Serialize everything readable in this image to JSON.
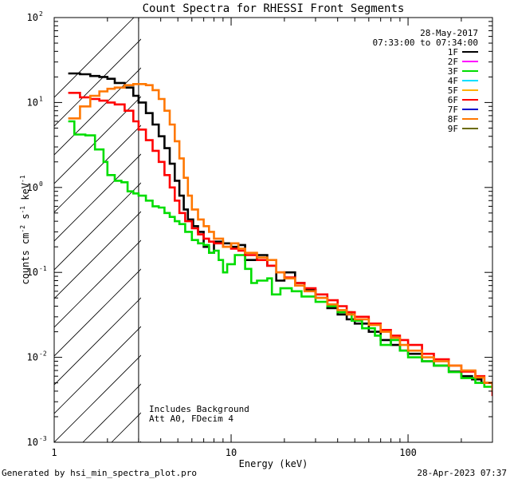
{
  "chart_data": {
    "type": "line",
    "title": "Count Spectra for RHESSI Front Segments",
    "xlabel": "Energy (keV)",
    "ylabel": "counts cm",
    "ylabel_parts": [
      "counts cm",
      "-2",
      " s",
      "-1",
      " keV",
      "-1"
    ],
    "xscale": "log",
    "yscale": "log",
    "xlim": [
      1,
      300
    ],
    "ylim": [
      0.001,
      100
    ],
    "x_ticks": [
      {
        "value": 1,
        "label": "1"
      },
      {
        "value": 10,
        "label": "10"
      },
      {
        "value": 100,
        "label": "100"
      }
    ],
    "y_ticks": [
      {
        "value": 0.001,
        "base": "10",
        "exp": "-3"
      },
      {
        "value": 0.01,
        "base": "10",
        "exp": "-2"
      },
      {
        "value": 0.1,
        "base": "10",
        "exp": "-1"
      },
      {
        "value": 1,
        "base": "10",
        "exp": "0"
      },
      {
        "value": 10,
        "base": "10",
        "exp": "1"
      },
      {
        "value": 100,
        "base": "10",
        "exp": "2"
      }
    ],
    "hatched_region": {
      "x_from": 1,
      "x_to": 3
    },
    "date": "28-May-2017",
    "time_range": "07:33:00 to 07:34:00",
    "annotations": [
      "Includes Background",
      "Att A0, FDecim 4"
    ],
    "legend": [
      {
        "name": "1F",
        "color": "#000000"
      },
      {
        "name": "2F",
        "color": "#ff00ff"
      },
      {
        "name": "3F",
        "color": "#00dd00"
      },
      {
        "name": "4F",
        "color": "#00e0ff"
      },
      {
        "name": "5F",
        "color": "#ffb000"
      },
      {
        "name": "6F",
        "color": "#ff0000"
      },
      {
        "name": "7F",
        "color": "#0000cc"
      },
      {
        "name": "8F",
        "color": "#ff7700"
      },
      {
        "name": "9F",
        "color": "#6b6b00"
      }
    ],
    "series": [
      {
        "name": "1F",
        "color": "#000000",
        "points": [
          [
            1.2,
            22
          ],
          [
            1.4,
            21.5
          ],
          [
            1.6,
            20.5
          ],
          [
            1.8,
            20
          ],
          [
            2.0,
            19
          ],
          [
            2.2,
            17
          ],
          [
            2.5,
            15
          ],
          [
            2.8,
            12
          ],
          [
            3.0,
            10
          ],
          [
            3.3,
            7.5
          ],
          [
            3.6,
            5.5
          ],
          [
            3.9,
            4
          ],
          [
            4.2,
            2.9
          ],
          [
            4.5,
            1.9
          ],
          [
            4.8,
            1.2
          ],
          [
            5.1,
            0.8
          ],
          [
            5.4,
            0.55
          ],
          [
            5.7,
            0.42
          ],
          [
            6.1,
            0.35
          ],
          [
            6.5,
            0.3
          ],
          [
            7.0,
            0.2
          ],
          [
            7.5,
            0.17
          ],
          [
            8.0,
            0.23
          ],
          [
            9.0,
            0.22
          ],
          [
            10,
            0.2
          ],
          [
            11,
            0.21
          ],
          [
            12,
            0.14
          ],
          [
            14,
            0.16
          ],
          [
            16,
            0.12
          ],
          [
            18,
            0.08
          ],
          [
            20,
            0.1
          ],
          [
            23,
            0.075
          ],
          [
            26,
            0.062
          ],
          [
            30,
            0.05
          ],
          [
            35,
            0.038
          ],
          [
            40,
            0.032
          ],
          [
            45,
            0.028
          ],
          [
            50,
            0.025
          ],
          [
            60,
            0.02
          ],
          [
            70,
            0.016
          ],
          [
            80,
            0.014
          ],
          [
            90,
            0.012
          ],
          [
            100,
            0.011
          ],
          [
            120,
            0.009
          ],
          [
            140,
            0.008
          ],
          [
            170,
            0.0068
          ],
          [
            200,
            0.006
          ],
          [
            230,
            0.0055
          ],
          [
            260,
            0.005
          ],
          [
            300,
            0.0045
          ]
        ]
      },
      {
        "name": "3F",
        "color": "#00dd00",
        "points": [
          [
            1.2,
            6
          ],
          [
            1.3,
            4.2
          ],
          [
            1.5,
            4.1
          ],
          [
            1.7,
            2.8
          ],
          [
            1.9,
            2.0
          ],
          [
            2.0,
            1.4
          ],
          [
            2.2,
            1.2
          ],
          [
            2.4,
            1.15
          ],
          [
            2.6,
            0.9
          ],
          [
            2.8,
            0.85
          ],
          [
            3.0,
            0.8
          ],
          [
            3.3,
            0.7
          ],
          [
            3.6,
            0.6
          ],
          [
            3.9,
            0.58
          ],
          [
            4.2,
            0.5
          ],
          [
            4.5,
            0.45
          ],
          [
            4.8,
            0.4
          ],
          [
            5.1,
            0.37
          ],
          [
            5.5,
            0.3
          ],
          [
            6.0,
            0.24
          ],
          [
            6.5,
            0.22
          ],
          [
            7.0,
            0.21
          ],
          [
            7.5,
            0.17
          ],
          [
            8.0,
            0.18
          ],
          [
            8.5,
            0.14
          ],
          [
            9.0,
            0.1
          ],
          [
            9.5,
            0.125
          ],
          [
            10.5,
            0.16
          ],
          [
            12,
            0.11
          ],
          [
            13,
            0.075
          ],
          [
            14,
            0.08
          ],
          [
            16,
            0.085
          ],
          [
            17,
            0.055
          ],
          [
            19,
            0.065
          ],
          [
            22,
            0.06
          ],
          [
            25,
            0.052
          ],
          [
            30,
            0.045
          ],
          [
            35,
            0.04
          ],
          [
            40,
            0.034
          ],
          [
            48,
            0.027
          ],
          [
            55,
            0.022
          ],
          [
            65,
            0.018
          ],
          [
            70,
            0.014
          ],
          [
            80,
            0.016
          ],
          [
            90,
            0.012
          ],
          [
            100,
            0.01
          ],
          [
            120,
            0.009
          ],
          [
            140,
            0.008
          ],
          [
            170,
            0.0067
          ],
          [
            200,
            0.0057
          ],
          [
            240,
            0.005
          ],
          [
            270,
            0.0045
          ],
          [
            300,
            0.004
          ]
        ]
      },
      {
        "name": "6F",
        "color": "#ff0000",
        "points": [
          [
            1.2,
            13
          ],
          [
            1.4,
            11.5
          ],
          [
            1.6,
            11
          ],
          [
            1.8,
            10.5
          ],
          [
            2.0,
            10
          ],
          [
            2.2,
            9.5
          ],
          [
            2.5,
            8
          ],
          [
            2.8,
            6
          ],
          [
            3.0,
            4.8
          ],
          [
            3.3,
            3.6
          ],
          [
            3.6,
            2.7
          ],
          [
            3.9,
            2.0
          ],
          [
            4.2,
            1.4
          ],
          [
            4.5,
            1.0
          ],
          [
            4.8,
            0.7
          ],
          [
            5.1,
            0.5
          ],
          [
            5.5,
            0.4
          ],
          [
            6.0,
            0.33
          ],
          [
            6.5,
            0.28
          ],
          [
            7.0,
            0.25
          ],
          [
            7.5,
            0.23
          ],
          [
            8.0,
            0.22
          ],
          [
            9.0,
            0.2
          ],
          [
            10,
            0.19
          ],
          [
            11,
            0.18
          ],
          [
            12,
            0.16
          ],
          [
            14,
            0.14
          ],
          [
            16,
            0.12
          ],
          [
            18,
            0.1
          ],
          [
            20,
            0.087
          ],
          [
            23,
            0.075
          ],
          [
            26,
            0.065
          ],
          [
            30,
            0.055
          ],
          [
            35,
            0.047
          ],
          [
            40,
            0.04
          ],
          [
            45,
            0.034
          ],
          [
            50,
            0.03
          ],
          [
            60,
            0.025
          ],
          [
            70,
            0.021
          ],
          [
            80,
            0.018
          ],
          [
            90,
            0.016
          ],
          [
            100,
            0.014
          ],
          [
            120,
            0.011
          ],
          [
            140,
            0.0095
          ],
          [
            170,
            0.008
          ],
          [
            200,
            0.0068
          ],
          [
            240,
            0.006
          ],
          [
            270,
            0.005
          ],
          [
            300,
            0.0035
          ]
        ]
      },
      {
        "name": "8F",
        "color": "#ff7700",
        "points": [
          [
            1.2,
            6.5
          ],
          [
            1.4,
            9
          ],
          [
            1.6,
            12
          ],
          [
            1.8,
            13.5
          ],
          [
            2.0,
            14.5
          ],
          [
            2.2,
            15
          ],
          [
            2.5,
            16
          ],
          [
            2.8,
            16.5
          ],
          [
            3.0,
            16.5
          ],
          [
            3.3,
            16
          ],
          [
            3.6,
            14
          ],
          [
            3.9,
            11
          ],
          [
            4.2,
            8
          ],
          [
            4.5,
            5.5
          ],
          [
            4.8,
            3.5
          ],
          [
            5.1,
            2.2
          ],
          [
            5.4,
            1.3
          ],
          [
            5.7,
            0.8
          ],
          [
            6.0,
            0.55
          ],
          [
            6.5,
            0.42
          ],
          [
            7.0,
            0.35
          ],
          [
            7.5,
            0.3
          ],
          [
            8.0,
            0.25
          ],
          [
            9.0,
            0.2
          ],
          [
            10,
            0.22
          ],
          [
            11,
            0.19
          ],
          [
            12,
            0.17
          ],
          [
            14,
            0.15
          ],
          [
            16,
            0.14
          ],
          [
            18,
            0.1
          ],
          [
            20,
            0.085
          ],
          [
            23,
            0.07
          ],
          [
            26,
            0.06
          ],
          [
            30,
            0.05
          ],
          [
            35,
            0.042
          ],
          [
            40,
            0.036
          ],
          [
            45,
            0.032
          ],
          [
            50,
            0.028
          ],
          [
            60,
            0.024
          ],
          [
            70,
            0.02
          ],
          [
            80,
            0.017
          ],
          [
            90,
            0.014
          ],
          [
            100,
            0.012
          ],
          [
            120,
            0.01
          ],
          [
            140,
            0.009
          ],
          [
            170,
            0.008
          ],
          [
            200,
            0.007
          ],
          [
            240,
            0.0058
          ],
          [
            270,
            0.005
          ],
          [
            300,
            0.004
          ]
        ]
      }
    ]
  },
  "footer": {
    "left": "Generated by hsi_min_spectra_plot.pro",
    "right": "28-Apr-2023 07:37"
  }
}
